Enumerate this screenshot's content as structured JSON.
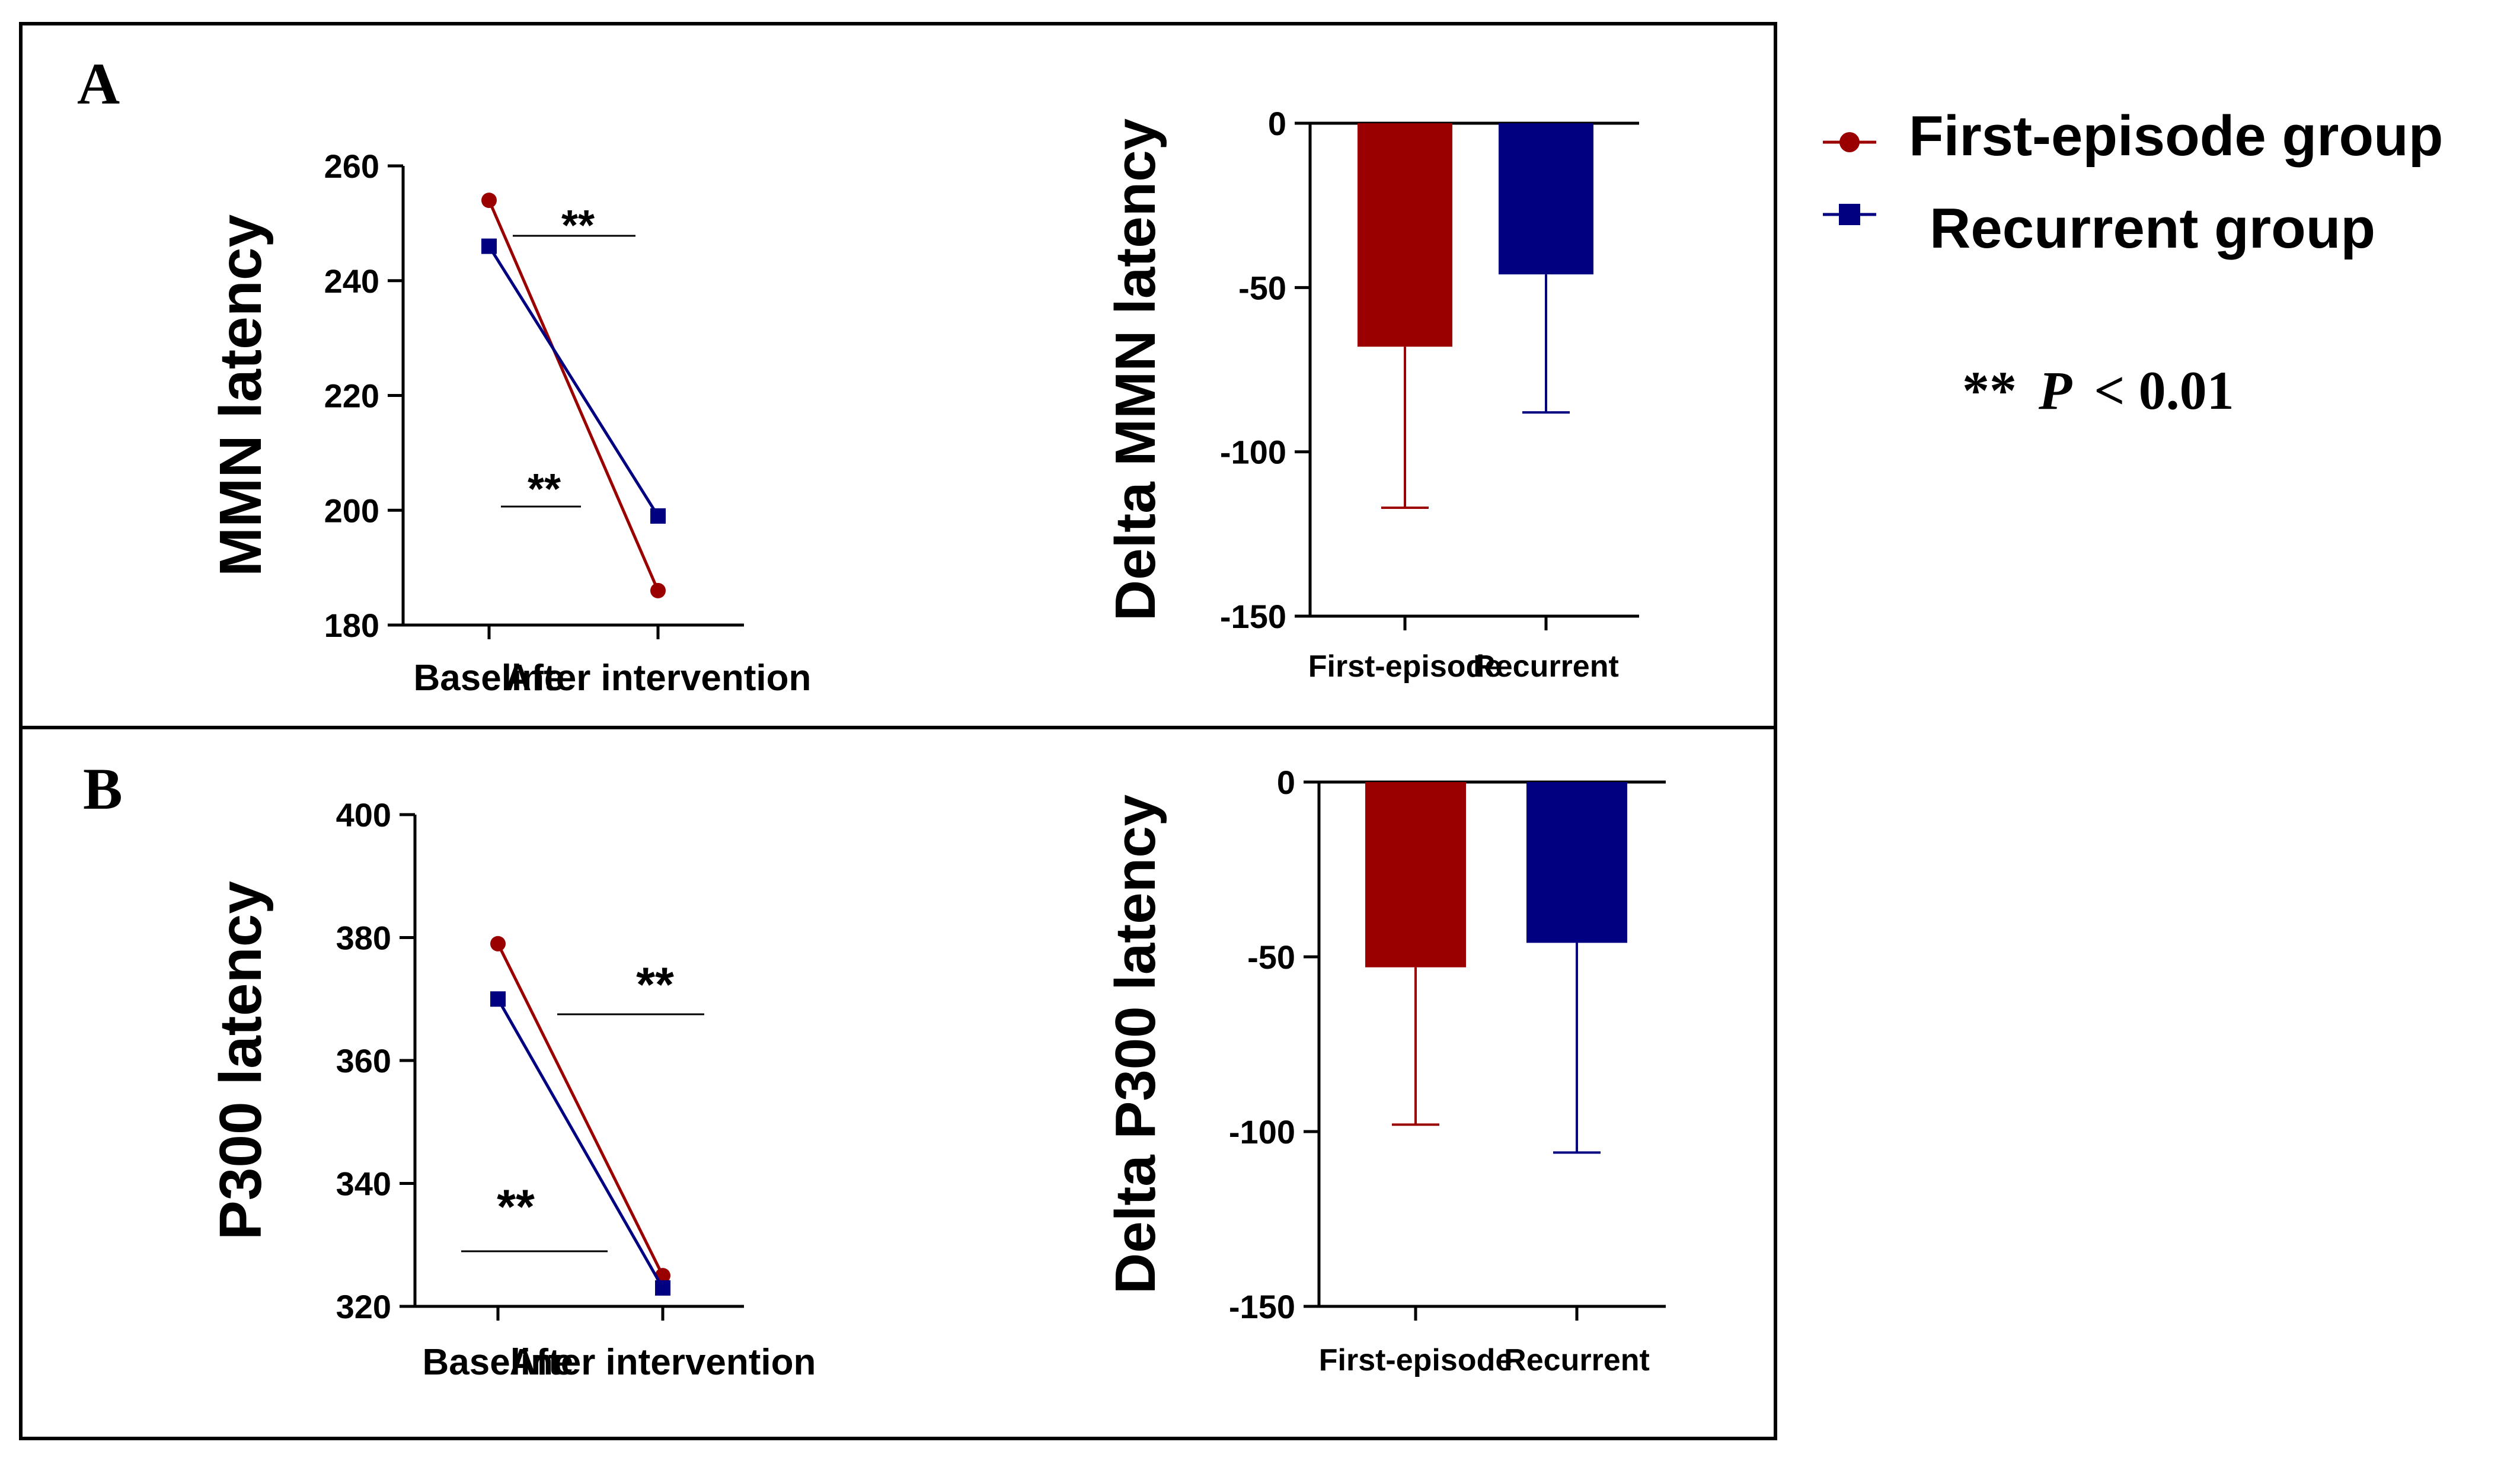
{
  "colors": {
    "first_episode": "#9b0000",
    "recurrent": "#000080",
    "axis": "#000000",
    "frame": "#000000"
  },
  "legend": {
    "first_episode_label": "First-episode group",
    "recurrent_label": "Recurrent group",
    "first_episode_marker": "circle",
    "recurrent_marker": "square"
  },
  "significance_note": {
    "stars": "**",
    "p": "P",
    "rest": "< 0.01"
  },
  "panels": {
    "A": {
      "label": "A"
    },
    "B": {
      "label": "B"
    }
  },
  "chart_data": [
    {
      "id": "mmn-line",
      "type": "line",
      "ylabel": "MMN latency",
      "categories": [
        "Baseline",
        "After intervention"
      ],
      "ylim": [
        180,
        260
      ],
      "yticks": [
        180,
        200,
        220,
        240,
        260
      ],
      "series": [
        {
          "name": "First-episode group",
          "values": [
            254,
            186
          ]
        },
        {
          "name": "Recurrent group",
          "values": [
            246,
            199
          ]
        }
      ],
      "annotations": [
        "**",
        "**"
      ]
    },
    {
      "id": "mmn-delta",
      "type": "bar",
      "ylabel": "Delta MMN latency",
      "categories": [
        "First-episode",
        "Recurrent"
      ],
      "ylim": [
        -150,
        0
      ],
      "yticks": [
        0,
        -50,
        -100,
        -150
      ],
      "values": [
        -68,
        -46
      ],
      "error_low": [
        -117,
        -88
      ]
    },
    {
      "id": "p300-line",
      "type": "line",
      "ylabel": "P300 latency",
      "categories": [
        "Baseline",
        "After intervention"
      ],
      "ylim": [
        320,
        400
      ],
      "yticks": [
        320,
        340,
        360,
        380,
        400
      ],
      "series": [
        {
          "name": "First-episode group",
          "values": [
            379,
            325
          ]
        },
        {
          "name": "Recurrent group",
          "values": [
            370,
            323
          ]
        }
      ],
      "annotations": [
        "**",
        "**"
      ]
    },
    {
      "id": "p300-delta",
      "type": "bar",
      "ylabel": "Delta P300 latency",
      "categories": [
        "First-episode",
        "Recurrent"
      ],
      "ylim": [
        -150,
        0
      ],
      "yticks": [
        0,
        -50,
        -100,
        -150
      ],
      "values": [
        -53,
        -46
      ],
      "error_low": [
        -98,
        -106
      ]
    }
  ]
}
